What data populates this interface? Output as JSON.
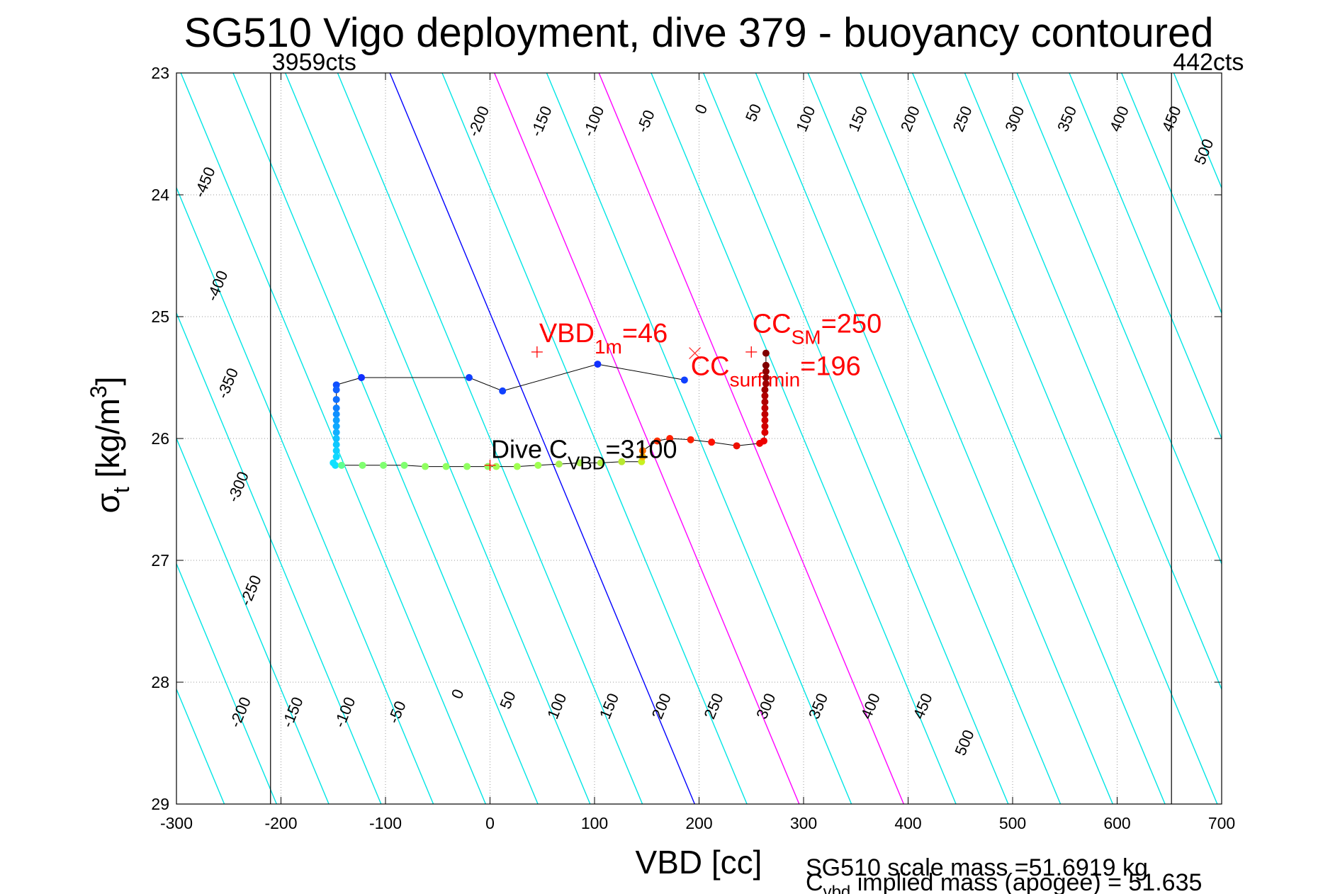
{
  "chart_data": {
    "type": "scatter",
    "title": "SG510 Vigo deployment, dive 379 - buoyancy contoured",
    "xlabel": "VBD [cc]",
    "ylabel": {
      "base": "σ",
      "sub": "t",
      "rest": " [kg/m",
      "sup": "3",
      "close": "]"
    },
    "xlim": [
      -300,
      700
    ],
    "ylim": [
      23,
      29
    ],
    "y_reversed": true,
    "grid": true,
    "xticks": [
      -300,
      -200,
      -100,
      0,
      100,
      200,
      300,
      400,
      500,
      600,
      700
    ],
    "yticks": [
      23,
      24,
      25,
      26,
      27,
      28,
      29
    ],
    "limit_lines": [
      {
        "x": -210,
        "label": "3959cts"
      },
      {
        "x": 652,
        "label": "442cts"
      }
    ],
    "contours": {
      "values": [
        -500,
        -450,
        -400,
        -350,
        -300,
        -250,
        -200,
        -150,
        -100,
        -50,
        0,
        50,
        100,
        150,
        200,
        250,
        300,
        350,
        400,
        450,
        500
      ],
      "slope_cc_per_sigma": 48.6,
      "x_at_sigma26_for_zero": 50,
      "step_cc": 50,
      "colors": {
        "zero": "#0000ff",
        "highlight": "#ff00ff",
        "other": "#00e5e5"
      },
      "highlight_values": [
        100,
        200
      ],
      "top_labels": [
        {
          "v": -450,
          "x": -272,
          "y": 23.9
        },
        {
          "v": -400,
          "x": -260,
          "y": 24.75
        },
        {
          "v": -350,
          "x": -250,
          "y": 25.55
        },
        {
          "v": -300,
          "x": -240,
          "y": 26.4
        },
        {
          "v": -250,
          "x": -228,
          "y": 27.25
        },
        {
          "v": -200,
          "x": -10,
          "y": 23.4
        },
        {
          "v": -150,
          "x": 50,
          "y": 23.4
        },
        {
          "v": -100,
          "x": 100,
          "y": 23.4
        },
        {
          "v": -50,
          "x": 150,
          "y": 23.4
        },
        {
          "v": 0,
          "x": 203,
          "y": 23.3
        },
        {
          "v": 50,
          "x": 253,
          "y": 23.33
        },
        {
          "v": 100,
          "x": 303,
          "y": 23.38
        },
        {
          "v": 150,
          "x": 353,
          "y": 23.38
        },
        {
          "v": 200,
          "x": 403,
          "y": 23.38
        },
        {
          "v": 250,
          "x": 453,
          "y": 23.38
        },
        {
          "v": 300,
          "x": 503,
          "y": 23.38
        },
        {
          "v": 350,
          "x": 553,
          "y": 23.38
        },
        {
          "v": 400,
          "x": 603,
          "y": 23.38
        },
        {
          "v": 450,
          "x": 653,
          "y": 23.38
        },
        {
          "v": 500,
          "x": 684,
          "y": 23.65
        }
      ],
      "bottom_labels": [
        {
          "v": -200,
          "x": -238,
          "y": 28.25
        },
        {
          "v": -150,
          "x": -188,
          "y": 28.25
        },
        {
          "v": -100,
          "x": -138,
          "y": 28.25
        },
        {
          "v": -50,
          "x": -88,
          "y": 28.25
        },
        {
          "v": 0,
          "x": -30,
          "y": 28.1
        },
        {
          "v": 50,
          "x": 18,
          "y": 28.15
        },
        {
          "v": 100,
          "x": 65,
          "y": 28.2
        },
        {
          "v": 150,
          "x": 115,
          "y": 28.2
        },
        {
          "v": 200,
          "x": 165,
          "y": 28.2
        },
        {
          "v": 250,
          "x": 215,
          "y": 28.2
        },
        {
          "v": 300,
          "x": 265,
          "y": 28.2
        },
        {
          "v": 350,
          "x": 315,
          "y": 28.2
        },
        {
          "v": 400,
          "x": 365,
          "y": 28.2
        },
        {
          "v": 450,
          "x": 415,
          "y": 28.2
        },
        {
          "v": 500,
          "x": 455,
          "y": 28.5
        }
      ]
    },
    "trace": {
      "series": [
        {
          "x": -150,
          "y": 26.2,
          "c": "#10e0ff"
        },
        {
          "x": -148,
          "y": 26.22,
          "c": "#10e0ff"
        },
        {
          "x": -142,
          "y": 26.22,
          "c": "#60ff90"
        },
        {
          "x": -122,
          "y": 26.22,
          "c": "#80ff70"
        },
        {
          "x": -102,
          "y": 26.22,
          "c": "#80ff70"
        },
        {
          "x": -82,
          "y": 26.22,
          "c": "#80ff70"
        },
        {
          "x": -62,
          "y": 26.23,
          "c": "#90ff60"
        },
        {
          "x": -42,
          "y": 26.23,
          "c": "#90ff60"
        },
        {
          "x": -22,
          "y": 26.23,
          "c": "#90ff60"
        },
        {
          "x": -2,
          "y": 26.23,
          "c": "#90ff60"
        },
        {
          "x": 6,
          "y": 26.23,
          "c": "#a0ff50"
        },
        {
          "x": 26,
          "y": 26.23,
          "c": "#a0ff50"
        },
        {
          "x": 46,
          "y": 26.22,
          "c": "#a0ff50"
        },
        {
          "x": 66,
          "y": 26.21,
          "c": "#a8f050"
        },
        {
          "x": 86,
          "y": 26.2,
          "c": "#a8f050"
        },
        {
          "x": 106,
          "y": 26.2,
          "c": "#b0f040"
        },
        {
          "x": 126,
          "y": 26.19,
          "c": "#b8e830"
        },
        {
          "x": 145,
          "y": 26.19,
          "c": "#c8f020"
        },
        {
          "x": 146,
          "y": 26.15,
          "c": "#ffb000"
        },
        {
          "x": 146,
          "y": 26.1,
          "c": "#ff7000"
        },
        {
          "x": 160,
          "y": 26.02,
          "c": "#ff3000"
        },
        {
          "x": 172,
          "y": 26.0,
          "c": "#ff2000"
        },
        {
          "x": 192,
          "y": 26.01,
          "c": "#ff2000"
        },
        {
          "x": 212,
          "y": 26.03,
          "c": "#ff1000"
        },
        {
          "x": 236,
          "y": 26.06,
          "c": "#ee1000"
        },
        {
          "x": 258,
          "y": 26.04,
          "c": "#ee0000"
        },
        {
          "x": 262,
          "y": 26.02,
          "c": "#ee0000"
        },
        {
          "x": 263,
          "y": 25.95,
          "c": "#dd0000"
        },
        {
          "x": 263,
          "y": 25.9,
          "c": "#d00000"
        },
        {
          "x": 263,
          "y": 25.85,
          "c": "#d00000"
        },
        {
          "x": 263,
          "y": 25.8,
          "c": "#c00000"
        },
        {
          "x": 263,
          "y": 25.75,
          "c": "#c00000"
        },
        {
          "x": 263,
          "y": 25.7,
          "c": "#b00000"
        },
        {
          "x": 263,
          "y": 25.65,
          "c": "#b00000"
        },
        {
          "x": 263,
          "y": 25.6,
          "c": "#a00000"
        },
        {
          "x": 264,
          "y": 25.55,
          "c": "#a00000"
        },
        {
          "x": 264,
          "y": 25.5,
          "c": "#900000"
        },
        {
          "x": 264,
          "y": 25.45,
          "c": "#900000"
        },
        {
          "x": 264,
          "y": 25.4,
          "c": "#800000"
        },
        {
          "x": 264,
          "y": 25.3,
          "c": "#800000"
        }
      ],
      "descent": [
        {
          "x": 186,
          "y": 25.52,
          "c": "#1040ff"
        },
        {
          "x": 103,
          "y": 25.39,
          "c": "#1030ff"
        },
        {
          "x": 12,
          "y": 25.61,
          "c": "#1040ff"
        },
        {
          "x": -20,
          "y": 25.5,
          "c": "#1040ff"
        },
        {
          "x": -123,
          "y": 25.5,
          "c": "#1030ff"
        },
        {
          "x": -147,
          "y": 25.56,
          "c": "#1050ff"
        },
        {
          "x": -147,
          "y": 25.6,
          "c": "#1060ff"
        },
        {
          "x": -147,
          "y": 25.68,
          "c": "#1070ff"
        },
        {
          "x": -147,
          "y": 25.75,
          "c": "#1080ff"
        },
        {
          "x": -147,
          "y": 25.8,
          "c": "#1090ff"
        },
        {
          "x": -147,
          "y": 25.85,
          "c": "#10a0ff"
        },
        {
          "x": -147,
          "y": 25.9,
          "c": "#10a8ff"
        },
        {
          "x": -147,
          "y": 25.95,
          "c": "#10b0ff"
        },
        {
          "x": -147,
          "y": 26.0,
          "c": "#10c0ff"
        },
        {
          "x": -147,
          "y": 26.05,
          "c": "#10c8ff"
        },
        {
          "x": -147,
          "y": 26.1,
          "c": "#10d0ff"
        },
        {
          "x": -147,
          "y": 26.15,
          "c": "#10d8ff"
        }
      ]
    },
    "markers": [
      {
        "shape": "plus",
        "x": 45,
        "y": 25.29,
        "color": "#ff0000"
      },
      {
        "shape": "x",
        "x": 196,
        "y": 25.3,
        "color": "#ff3030"
      },
      {
        "shape": "plus",
        "x": 250,
        "y": 25.29,
        "color": "#ff0000"
      },
      {
        "shape": "plus",
        "x": 0,
        "y": 26.22,
        "color": "#ff0000"
      }
    ],
    "annotations": [
      {
        "base": "VBD",
        "sub": "1m",
        "tail": "=46",
        "color": "#ff0000",
        "x": 47,
        "y": 25.21,
        "size": 30
      },
      {
        "base": "CC",
        "sub": "SM",
        "tail": "=250",
        "color": "#ff0000",
        "x": 251,
        "y": 25.13,
        "size": 30
      },
      {
        "base": "CC",
        "sub": "surf min",
        "tail": "=196",
        "color": "#ff0000",
        "x": 192,
        "y": 25.48,
        "size": 30
      },
      {
        "base": "Dive C",
        "sub": "VBD",
        "tail": "=3100",
        "color": "#000000",
        "x": 1,
        "y": 26.16,
        "size": 28
      }
    ],
    "footer": {
      "line1": "SG510 scale mass =51.6919 kg",
      "line2_base": "C",
      "line2_sub": "vbd",
      "line2_tail": " implied mass (apogee) = 51.635"
    }
  }
}
